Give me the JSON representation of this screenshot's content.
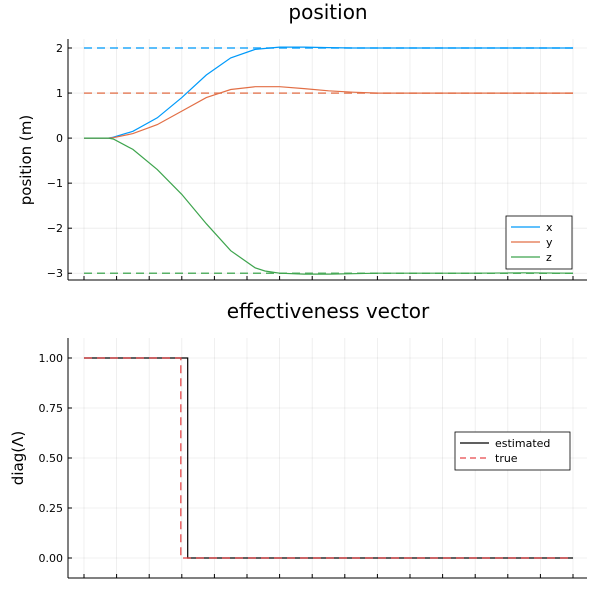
{
  "chart_data": [
    {
      "type": "line",
      "title": "position",
      "xlabel": "",
      "ylabel": "position (m)",
      "ylim": [
        -3.15,
        2.2
      ],
      "xlim": [
        0,
        1
      ],
      "yticks": [
        2,
        1,
        0,
        -1,
        -2,
        -3
      ],
      "ytick_labels": [
        "2",
        "1",
        "0",
        "−1",
        "−2",
        "−3"
      ],
      "x_tick_count": 16,
      "grid": true,
      "legend_position": "bottom-right",
      "colors": {
        "x": "#009AFA",
        "y": "#E26F46",
        "z": "#3DA44D"
      },
      "series": [
        {
          "name": "x",
          "style": "solid",
          "x": [
            0,
            0.05,
            0.06,
            0.1,
            0.15,
            0.2,
            0.25,
            0.3,
            0.35,
            0.4,
            0.45,
            0.5,
            0.55,
            0.6,
            0.7,
            0.8,
            0.9,
            1.0
          ],
          "y": [
            0,
            0,
            0.02,
            0.15,
            0.45,
            0.9,
            1.4,
            1.78,
            1.97,
            2.02,
            2.02,
            2.01,
            2.0,
            2.0,
            2.0,
            2.0,
            2.0,
            2.0
          ]
        },
        {
          "name": "y",
          "style": "solid",
          "x": [
            0,
            0.05,
            0.06,
            0.1,
            0.15,
            0.2,
            0.25,
            0.3,
            0.35,
            0.4,
            0.45,
            0.5,
            0.55,
            0.6,
            0.7,
            0.8,
            0.9,
            1.0
          ],
          "y": [
            0,
            0,
            0.01,
            0.1,
            0.3,
            0.6,
            0.9,
            1.08,
            1.14,
            1.14,
            1.1,
            1.05,
            1.02,
            1.0,
            1.0,
            1.0,
            1.0,
            1.0
          ]
        },
        {
          "name": "z",
          "style": "solid",
          "x": [
            0,
            0.05,
            0.06,
            0.1,
            0.15,
            0.2,
            0.25,
            0.3,
            0.35,
            0.37,
            0.4,
            0.45,
            0.5,
            0.55,
            0.6,
            0.7,
            0.8,
            0.9,
            1.0
          ],
          "y": [
            0,
            0,
            -0.02,
            -0.25,
            -0.7,
            -1.25,
            -1.9,
            -2.5,
            -2.88,
            -2.95,
            -3.0,
            -3.02,
            -3.02,
            -3.01,
            -3.0,
            -3.0,
            -3.0,
            -2.99,
            -3.0
          ]
        },
        {
          "name": "x-ref",
          "style": "dashed",
          "x": [
            0,
            1
          ],
          "y": [
            2,
            2
          ]
        },
        {
          "name": "y-ref",
          "style": "dashed",
          "x": [
            0,
            1
          ],
          "y": [
            1,
            1
          ]
        },
        {
          "name": "z-ref",
          "style": "dashed",
          "x": [
            0,
            1
          ],
          "y": [
            -3,
            -3
          ]
        }
      ],
      "legend": [
        "x",
        "y",
        "z"
      ]
    },
    {
      "type": "line",
      "title": "effectiveness vector",
      "xlabel": "",
      "ylabel": "diag(Λ)",
      "ylim": [
        -0.1,
        1.1
      ],
      "xlim": [
        0,
        1
      ],
      "yticks": [
        1.0,
        0.75,
        0.5,
        0.25,
        0.0
      ],
      "ytick_labels": [
        "1.00",
        "0.75",
        "0.50",
        "0.25",
        "0.00"
      ],
      "x_tick_count": 16,
      "grid": true,
      "legend_position": "center-right",
      "colors": {
        "estimated": "#000000",
        "true": "#E8484A"
      },
      "series": [
        {
          "name": "estimated",
          "style": "solid",
          "x": [
            0,
            0.212,
            0.212,
            1.0
          ],
          "y": [
            1,
            1,
            0,
            0
          ]
        },
        {
          "name": "true",
          "style": "dashed",
          "x": [
            0,
            0.198,
            0.198,
            1.0
          ],
          "y": [
            1,
            1,
            0,
            0
          ]
        }
      ],
      "legend": [
        "estimated",
        "true"
      ]
    }
  ]
}
